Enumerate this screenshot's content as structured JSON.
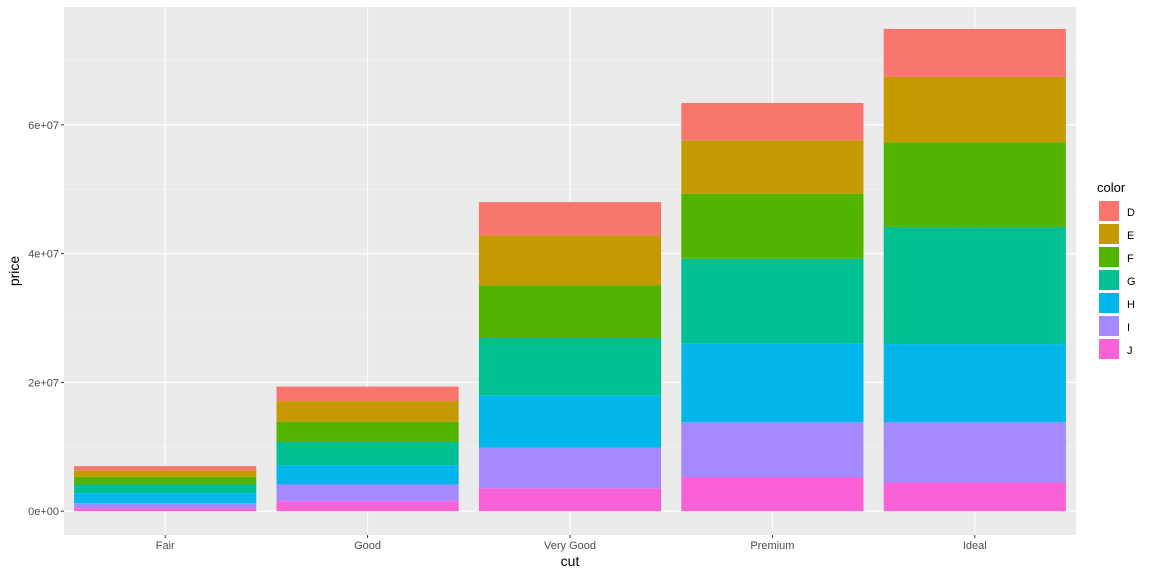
{
  "chart_data": {
    "type": "bar",
    "stacked": true,
    "xlabel": "cut",
    "ylabel": "price",
    "categories": [
      "Fair",
      "Good",
      "Very Good",
      "Premium",
      "Ideal"
    ],
    "ylim": [
      -3700000,
      78300000
    ],
    "yticks": [
      {
        "value": 0,
        "label": "0e+00"
      },
      {
        "value": 20000000,
        "label": "2e+07"
      },
      {
        "value": 40000000,
        "label": "4e+07"
      },
      {
        "value": 60000000,
        "label": "6e+07"
      }
    ],
    "legend": {
      "title": "color",
      "position": "right"
    },
    "series": [
      {
        "name": "D",
        "color": "#F8766D",
        "values": [
          700000,
          2250000,
          5200000,
          5800000,
          7450000
        ]
      },
      {
        "name": "E",
        "color": "#C49A00",
        "values": [
          950000,
          3200000,
          7700000,
          8300000,
          10150000
        ]
      },
      {
        "name": "F",
        "color": "#53B400",
        "values": [
          1200000,
          3150000,
          8200000,
          10100000,
          13150000
        ]
      },
      {
        "name": "G",
        "color": "#00C094",
        "values": [
          1350000,
          3600000,
          8900000,
          13200000,
          18200000
        ]
      },
      {
        "name": "H",
        "color": "#00B6EB",
        "values": [
          1550000,
          3000000,
          8150000,
          12200000,
          12150000
        ]
      },
      {
        "name": "I",
        "color": "#A58AFF",
        "values": [
          800000,
          2600000,
          6300000,
          8500000,
          9350000
        ]
      },
      {
        "name": "J",
        "color": "#FB61D7",
        "values": [
          450000,
          1550000,
          3550000,
          5300000,
          4450000
        ]
      }
    ]
  }
}
